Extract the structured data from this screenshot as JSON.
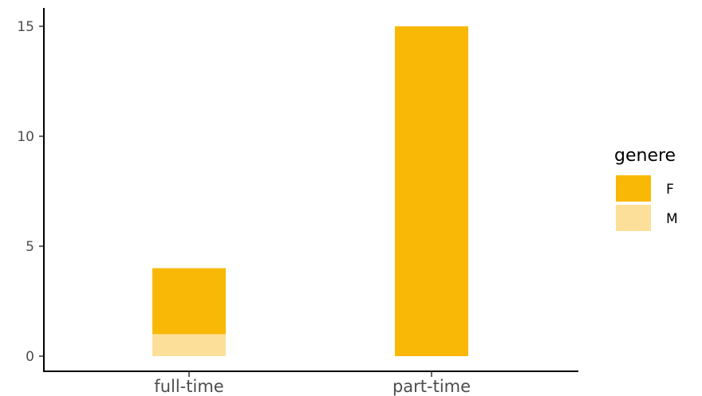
{
  "chart_data": {
    "type": "bar",
    "stacked": true,
    "categories": [
      "full-time",
      "part-time"
    ],
    "series": [
      {
        "name": "M",
        "values": [
          1,
          0
        ],
        "color": "#FCE09A"
      },
      {
        "name": "F",
        "values": [
          3,
          15
        ],
        "color": "#F9B805"
      }
    ],
    "ylim": [
      0,
      15.6
    ],
    "yticks": [
      "0",
      "5",
      "10",
      "15"
    ],
    "xlabel": "",
    "ylabel": "",
    "grid": false,
    "legend": {
      "title": "genere",
      "position": "right",
      "entries": [
        {
          "label": "F",
          "color": "#F9B805"
        },
        {
          "label": "M",
          "color": "#FCE09A"
        }
      ]
    }
  }
}
